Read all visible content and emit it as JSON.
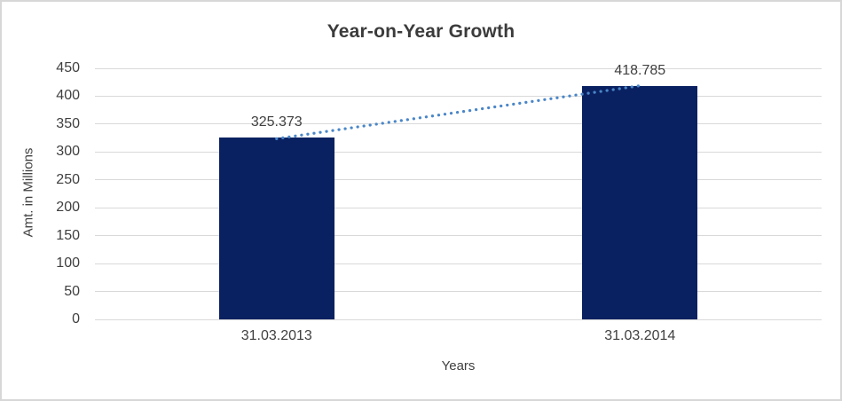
{
  "chart_data": {
    "type": "bar",
    "title": "Year-on-Year Growth",
    "xlabel": "Years",
    "ylabel": "Amt. in Millions",
    "categories": [
      "31.03.2013",
      "31.03.2014"
    ],
    "values": [
      325.373,
      418.785
    ],
    "data_labels": [
      "325.373",
      "418.785"
    ],
    "ylim": [
      0,
      450
    ],
    "ytick_step": 50,
    "grid": true,
    "legend": "none",
    "bar_color": "#0a2161",
    "trendline": {
      "type": "linear",
      "style": "dotted",
      "color": "#4a86c8"
    },
    "text_color": "#404040",
    "gridline_color": "#d9d9d9",
    "border_color": "#d7d7d7",
    "background": "#ffffff"
  }
}
